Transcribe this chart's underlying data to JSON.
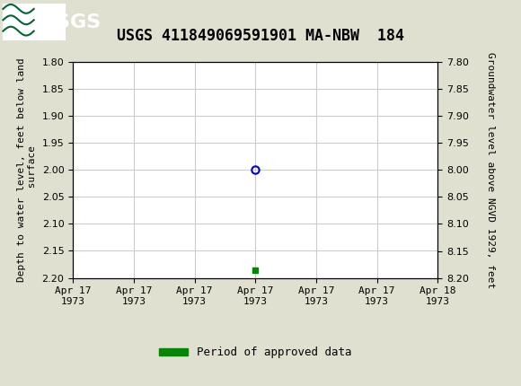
{
  "title": "USGS 411849069591901 MA-NBW  184",
  "header_color": "#006633",
  "bg_color": "#e0e0d0",
  "plot_bg_color": "#ffffff",
  "left_ylabel_lines": [
    "Depth to water level, feet below land",
    " surface"
  ],
  "right_ylabel": "Groundwater level above NGVD 1929, feet",
  "ylim_left": [
    1.8,
    2.2
  ],
  "ylim_right_top": 8.2,
  "ylim_right_bottom": 7.8,
  "yticks_left": [
    1.8,
    1.85,
    1.9,
    1.95,
    2.0,
    2.05,
    2.1,
    2.15,
    2.2
  ],
  "yticks_right": [
    8.2,
    8.15,
    8.1,
    8.05,
    8.0,
    7.95,
    7.9,
    7.85,
    7.8
  ],
  "ytick_labels_right": [
    "8.20",
    "8.15",
    "8.10",
    "8.05",
    "8.00",
    "7.95",
    "7.90",
    "7.85",
    "7.80"
  ],
  "data_blue_x": 3.0,
  "data_blue_y": 2.0,
  "data_green_x": 3.0,
  "data_green_y": 2.185,
  "x_range": [
    0,
    6
  ],
  "xtick_positions": [
    0,
    1,
    2,
    3,
    4,
    5,
    6
  ],
  "xtick_labels": [
    "Apr 17\n1973",
    "Apr 17\n1973",
    "Apr 17\n1973",
    "Apr 17\n1973",
    "Apr 17\n1973",
    "Apr 17\n1973",
    "Apr 18\n1973"
  ],
  "grid_color": "#cccccc",
  "blue_marker_color": "#0000cc",
  "green_marker_color": "#008800",
  "legend_label": "Period of approved data",
  "title_fontsize": 12,
  "axis_fontsize": 8,
  "tick_fontsize": 8
}
